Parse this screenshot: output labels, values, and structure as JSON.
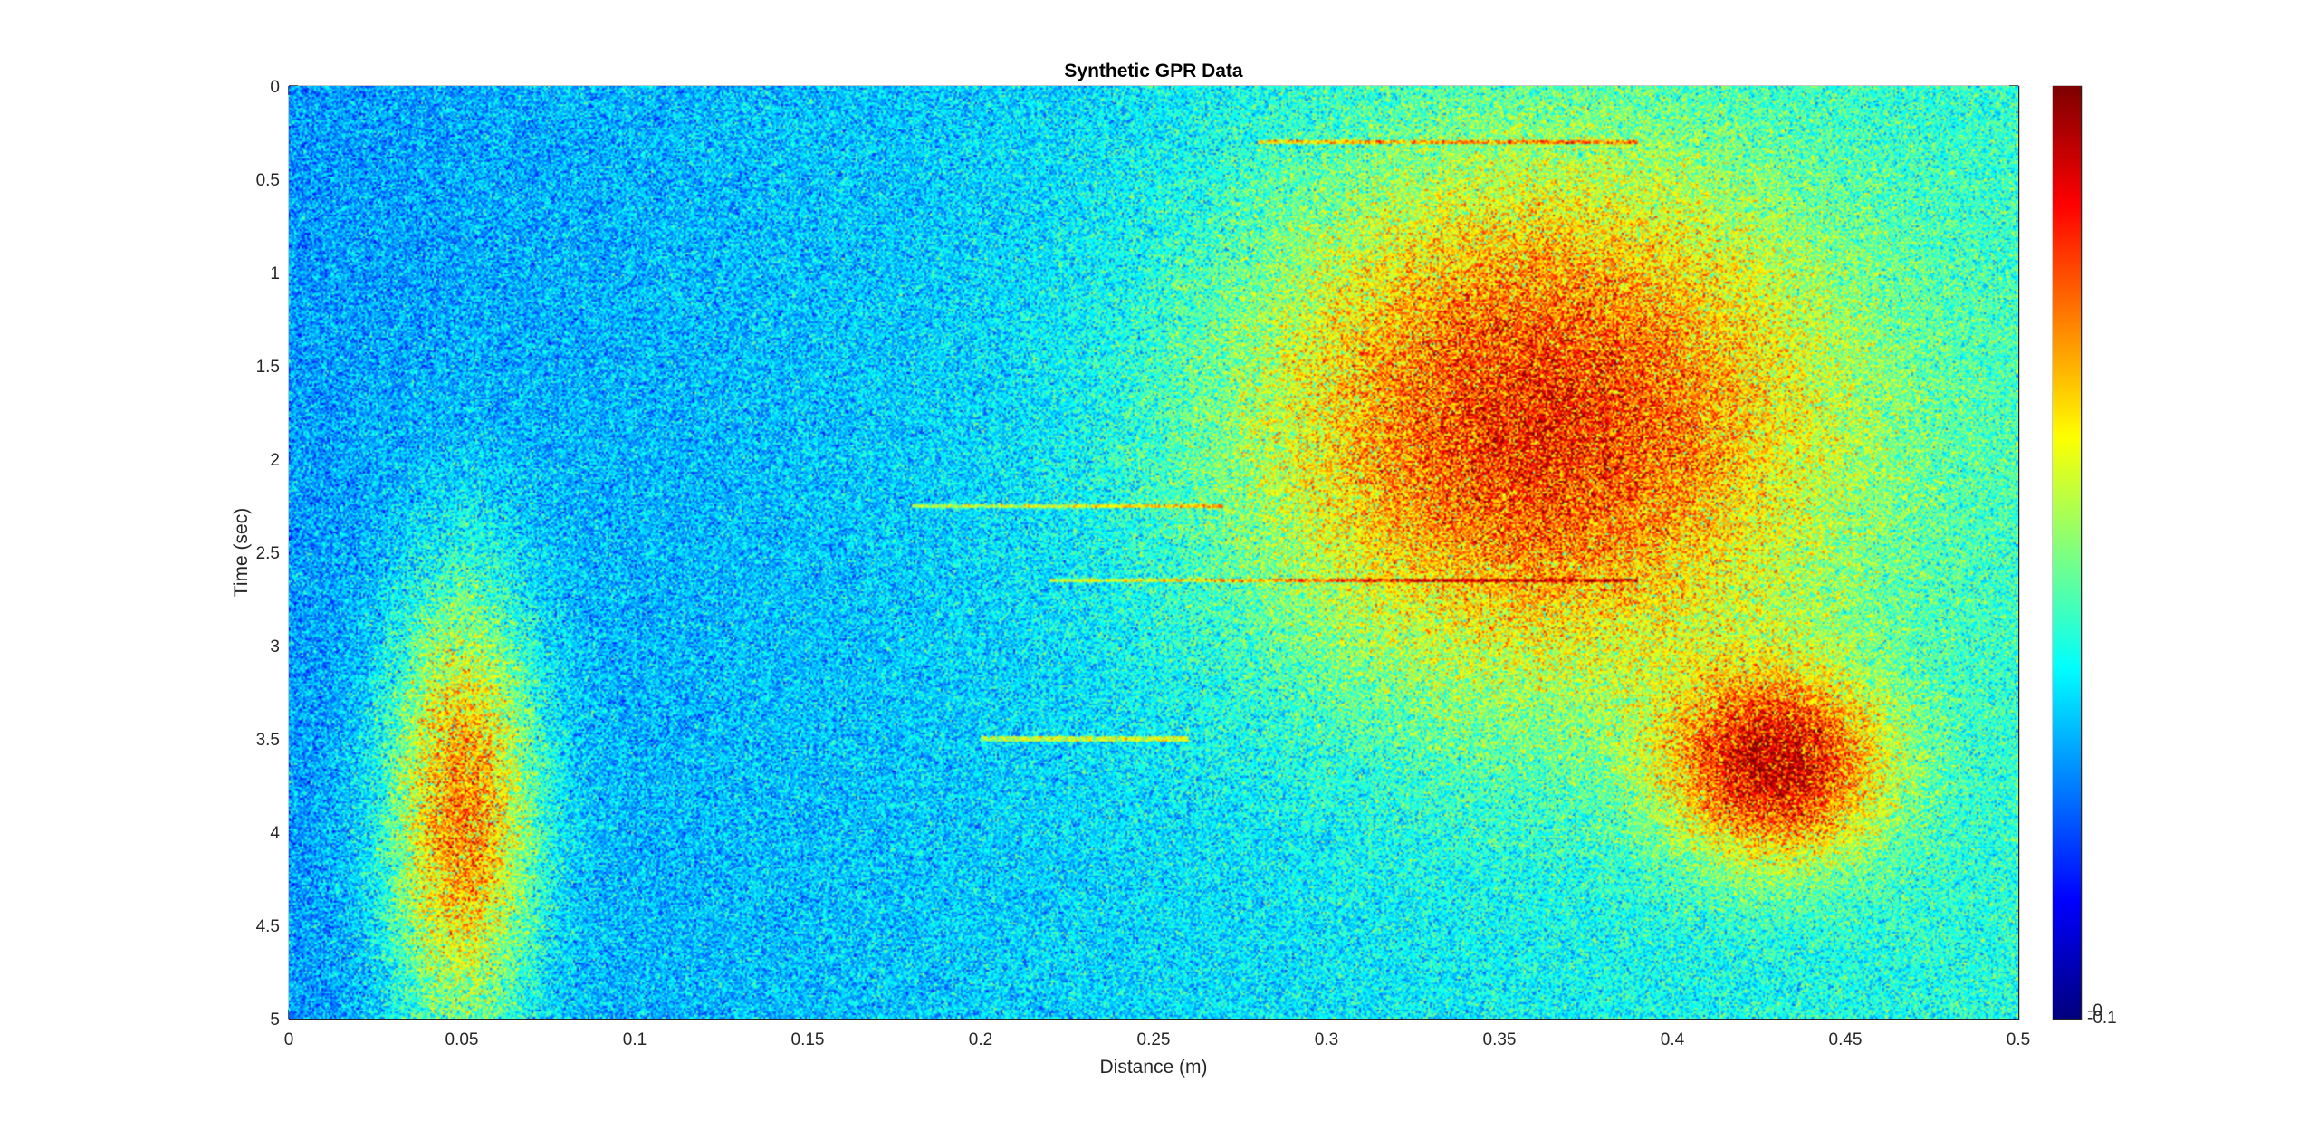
{
  "chart_data": {
    "type": "heatmap",
    "title": "Synthetic GPR Data",
    "xlabel": "Distance (m)",
    "ylabel": "Time (sec)",
    "xlim": [
      0,
      0.5
    ],
    "ylim": [
      0,
      5
    ],
    "y_direction": "reversed",
    "xticks": [
      0,
      0.05,
      0.1,
      0.15,
      0.2,
      0.25,
      0.3,
      0.35,
      0.4,
      0.45,
      0.5
    ],
    "xtick_labels": [
      "0",
      "0.05",
      "0.1",
      "0.15",
      "0.2",
      "0.25",
      "0.3",
      "0.35",
      "0.4",
      "0.45",
      "0.5"
    ],
    "yticks": [
      0,
      0.5,
      1,
      1.5,
      2,
      2.5,
      3,
      3.5,
      4,
      4.5,
      5
    ],
    "ytick_labels": [
      "0",
      "0.5",
      "1",
      "1.5",
      "2",
      "2.5",
      "3",
      "3.5",
      "4",
      "4.5",
      "5"
    ],
    "colormap": "jet",
    "colorbar_tick_labels": [
      "-0",
      "-0.1"
    ],
    "features": [
      {
        "type": "hyperbola",
        "x": 0.05,
        "y": 3.9,
        "sx": 0.015,
        "sy": 0.85,
        "amplitude": 0.8
      },
      {
        "type": "hyperbola",
        "x": 0.36,
        "y": 1.8,
        "sx": 0.06,
        "sy": 1.0,
        "amplitude": 0.85
      },
      {
        "type": "hyperbola",
        "x": 0.43,
        "y": 3.65,
        "sx": 0.022,
        "sy": 0.35,
        "amplitude": 0.9
      },
      {
        "type": "reflector",
        "x_start": 0.28,
        "x_end": 0.39,
        "y": 0.3
      },
      {
        "type": "reflector",
        "x_start": 0.18,
        "x_end": 0.27,
        "y": 2.25
      },
      {
        "type": "reflector",
        "x_start": 0.22,
        "x_end": 0.39,
        "y": 2.65
      },
      {
        "type": "reflector",
        "x_start": 0.2,
        "x_end": 0.26,
        "y": 3.5
      }
    ],
    "background_level": 0.33,
    "noise_level": 0.1,
    "grid": false
  }
}
